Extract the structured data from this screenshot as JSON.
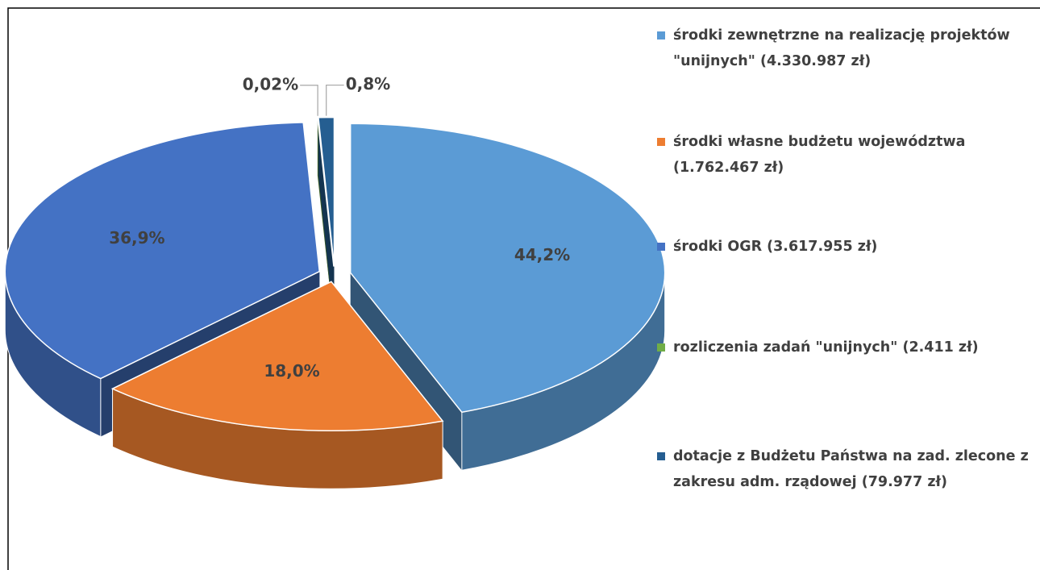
{
  "chart_data": {
    "type": "pie",
    "categories": [
      "środki zewnętrzne na realizację projektów \"unijnych\" (4.330.987 zł)",
      "środki własne budżetu województwa (1.762.467 zł)",
      "środki OGR (3.617.955 zł)",
      "rozliczenia zadań \"unijnych\"  (2.411 zł)",
      "dotacje z Budżetu Państwa na zad. zlecone z zakresu adm. rządowej (79.977 zł)"
    ],
    "values": [
      44.2,
      18.0,
      36.9,
      0.02,
      0.8
    ],
    "value_labels": [
      "44,2%",
      "18,0%",
      "36,9%",
      "0,02%",
      "0,8%"
    ],
    "colors": [
      "#5b9bd5",
      "#ed7d31",
      "#4472c4",
      "#70ad47",
      "#255e91"
    ],
    "legend": "right"
  }
}
